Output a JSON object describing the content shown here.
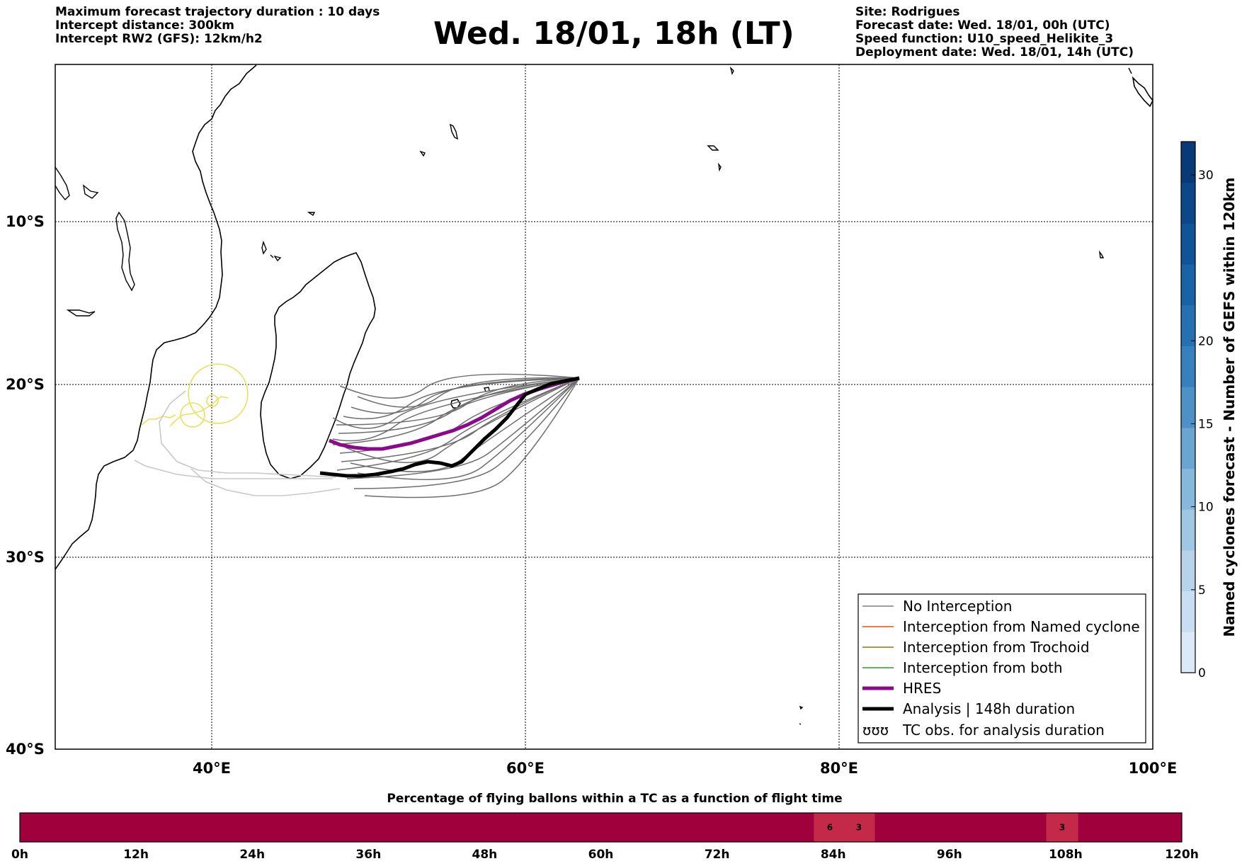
{
  "header": {
    "left_lines": [
      "Maximum forecast trajectory duration : 10 days",
      "Intercept distance: 300km",
      "Intercept RW2 (GFS):  12km/h2"
    ],
    "title": "Wed. 18/01, 18h (LT)",
    "right_lines": [
      "Site: Rodrigues",
      "Forecast date: Wed. 18/01, 00h (UTC)",
      "Speed function: U10_speed_Helikite_3",
      "Deployment date: Wed. 18/01, 14h (UTC)"
    ]
  },
  "map": {
    "lat_labels": [
      "10°S",
      "20°S",
      "30°S",
      "40°S"
    ],
    "lon_labels": [
      "40°E",
      "60°E",
      "80°E",
      "100°E"
    ],
    "colors": {
      "no_interception": "#6e6e6e",
      "hres": "#8b0a8b",
      "analysis": "#000000",
      "tc_track": "#e8e060"
    }
  },
  "legend": {
    "items": [
      {
        "label": "No Interception",
        "color": "#808080",
        "width": 1.5
      },
      {
        "label": "Interception from Named cyclone",
        "color": "#e8501a",
        "width": 1.5
      },
      {
        "label": "Interception from Trochoid",
        "color": "#8b7a10",
        "width": 1.5
      },
      {
        "label": "Interception from both",
        "color": "#2a9a2a",
        "width": 1.5
      },
      {
        "label": "HRES",
        "color": "#8b0a8b",
        "width": 5
      },
      {
        "label": "Analysis | 148h duration",
        "color": "#000000",
        "width": 5
      }
    ],
    "tc_symbol": "ʊʊʊ",
    "tc_label": "TC obs. for analysis duration"
  },
  "colorbar": {
    "title": "Named cyclones forecast - Number of GEFS within 120km",
    "ticks": [
      "0",
      "5",
      "10",
      "15",
      "20",
      "30"
    ],
    "colors": [
      "#dce9f6",
      "#c9def0",
      "#b6d3ea",
      "#9fc6e3",
      "#86b7dc",
      "#6aa5d2",
      "#4d91c7",
      "#3580bd",
      "#2470b2",
      "#1862a7",
      "#0f5499",
      "#0b4789",
      "#083a78"
    ]
  },
  "bottom_bar": {
    "title": "Percentage of flying ballons within a TC as a function of flight time",
    "ticks": [
      "0h",
      "12h",
      "24h",
      "36h",
      "48h",
      "60h",
      "72h",
      "84h",
      "96h",
      "108h",
      "120h"
    ],
    "base_color": "#a0003c",
    "highlight_color": "#c4294a",
    "cells": [
      {
        "hour": 82,
        "value": "6"
      },
      {
        "hour": 85,
        "value": "3"
      },
      {
        "hour": 106,
        "value": "3"
      }
    ]
  }
}
